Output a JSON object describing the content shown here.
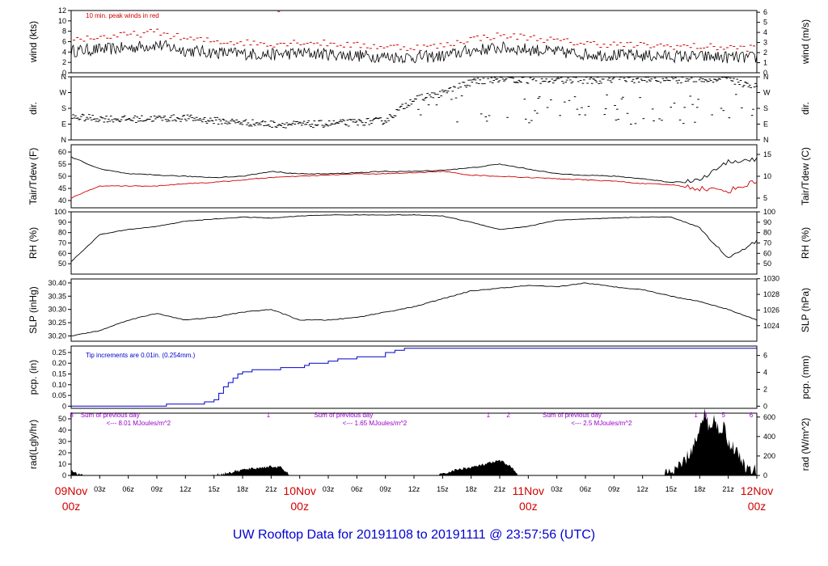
{
  "title": "UW Rooftop Data for 20191108  to  20191111 @ 23:57:56  (UTC)",
  "colors": {
    "black": "#000000",
    "red": "#d00000",
    "blue": "#0000d0",
    "purple": "#9900cc"
  },
  "x_axis": {
    "hour_labels": [
      "03z",
      "06z",
      "09z",
      "12z",
      "15z",
      "18z",
      "21z"
    ],
    "day_labels": [
      {
        "day": "09Nov",
        "hour": "00z"
      },
      {
        "day": "10Nov",
        "hour": "00z"
      },
      {
        "day": "11Nov",
        "hour": "00z"
      },
      {
        "day": "12Nov",
        "hour": "00z"
      }
    ]
  },
  "chart_data": [
    {
      "type": "line",
      "id": "wind",
      "ylabel": "wind (kts)",
      "ylabel_right": "wind (m/s)",
      "ylim": [
        0,
        12
      ],
      "yticks": [
        "0",
        "2",
        "4",
        "6",
        "8",
        "10",
        "12"
      ],
      "yticks_right": [
        "0",
        "1",
        "2",
        "3",
        "4",
        "5",
        "6"
      ],
      "annotation": "10 min. peak winds in red",
      "x_hours": [
        0,
        3,
        6,
        9,
        12,
        15,
        18,
        21,
        24,
        27,
        30,
        33,
        36,
        39,
        42,
        45,
        48,
        51,
        54,
        57,
        60,
        63,
        66,
        69,
        72
      ],
      "series": [
        {
          "role": "mean",
          "values": [
            4.2,
            4.5,
            4.8,
            5.4,
            4.3,
            3.9,
            3.7,
            3.5,
            3.8,
            3.6,
            3.3,
            3.1,
            3.0,
            3.2,
            4.3,
            4.8,
            4.5,
            4.0,
            3.6,
            3.4,
            3.3,
            3.2,
            3.1,
            3.0,
            2.9
          ]
        },
        {
          "role": "peak",
          "values": [
            6.2,
            6.6,
            7.0,
            7.6,
            6.3,
            5.8,
            5.6,
            5.3,
            5.7,
            5.4,
            5.0,
            4.8,
            4.6,
            4.9,
            6.3,
            6.9,
            6.6,
            5.9,
            5.4,
            5.2,
            5.0,
            4.9,
            4.8,
            4.6,
            4.5
          ]
        }
      ]
    },
    {
      "type": "scatter",
      "id": "dir",
      "ylabel": "dir.",
      "ylabel_right": "dir.",
      "ylim": [
        0,
        360
      ],
      "yticks": [
        "N",
        "E",
        "S",
        "W",
        "N"
      ],
      "x_hours": [
        0,
        3,
        6,
        9,
        12,
        15,
        18,
        21,
        24,
        27,
        30,
        33,
        36,
        39,
        42,
        45,
        48,
        51,
        54,
        57,
        60,
        63,
        66,
        69,
        72
      ],
      "values": [
        130,
        122,
        118,
        122,
        125,
        110,
        100,
        90,
        88,
        92,
        100,
        110,
        235,
        265,
        330,
        350,
        340,
        340,
        342,
        340,
        345,
        340,
        345,
        345,
        300
      ]
    },
    {
      "type": "line",
      "id": "temp",
      "ylabel": "Tair/Tdew (F)",
      "ylabel_right": "Tair/Tdew (C)",
      "ylim": [
        37,
        63
      ],
      "yticks": [
        "40",
        "45",
        "50",
        "55",
        "60"
      ],
      "yticks_right": [
        "5",
        "10",
        "15"
      ],
      "x_hours": [
        0,
        3,
        6,
        9,
        12,
        15,
        18,
        21,
        24,
        27,
        30,
        33,
        36,
        39,
        42,
        45,
        48,
        51,
        54,
        57,
        60,
        63,
        66,
        69,
        72
      ],
      "series": [
        {
          "name": "Tair",
          "values": [
            58,
            53,
            51,
            50.5,
            50,
            49.5,
            50,
            52,
            51,
            51,
            51.5,
            52,
            52,
            52.5,
            53.5,
            55,
            53,
            51,
            50.5,
            50,
            49,
            47.5,
            48.5,
            56,
            57
          ]
        },
        {
          "name": "Tdew",
          "values": [
            41,
            46,
            46,
            46,
            47,
            47.5,
            48.5,
            49.5,
            50,
            50.5,
            51,
            51,
            51.5,
            52,
            50.5,
            50,
            49.5,
            49,
            48.5,
            48,
            47,
            46.5,
            45,
            44,
            48
          ]
        }
      ]
    },
    {
      "type": "line",
      "id": "rh",
      "ylabel": "RH (%)",
      "ylabel_right": "RH (%)",
      "ylim": [
        40,
        100
      ],
      "yticks": [
        "50",
        "60",
        "70",
        "80",
        "90",
        "100"
      ],
      "yticks_right": [
        "50",
        "60",
        "70",
        "80",
        "90",
        "100"
      ],
      "x_hours": [
        0,
        3,
        6,
        9,
        12,
        15,
        18,
        21,
        24,
        27,
        30,
        33,
        36,
        39,
        42,
        45,
        48,
        51,
        54,
        57,
        60,
        63,
        66,
        69,
        72
      ],
      "values": [
        52,
        78,
        83,
        86,
        91,
        93,
        95,
        94,
        96,
        97,
        97,
        97,
        97,
        96,
        90,
        83,
        86,
        92,
        93,
        94,
        95,
        95,
        85,
        55,
        72
      ]
    },
    {
      "type": "line",
      "id": "slp",
      "ylabel": "SLP (inHg)",
      "ylabel_right": "SLP (hPa)",
      "ylim": [
        30.18,
        30.415
      ],
      "yticks": [
        "30.20",
        "30.25",
        "30.30",
        "30.35",
        "30.40"
      ],
      "yticks_right": [
        "1024",
        "1026",
        "1028",
        "1030"
      ],
      "x_hours": [
        0,
        3,
        6,
        9,
        12,
        15,
        18,
        21,
        24,
        27,
        30,
        33,
        36,
        39,
        42,
        45,
        48,
        51,
        54,
        57,
        60,
        63,
        66,
        69,
        72
      ],
      "values": [
        30.2,
        30.22,
        30.26,
        30.285,
        30.26,
        30.27,
        30.29,
        30.3,
        30.26,
        30.26,
        30.27,
        30.29,
        30.31,
        30.34,
        30.37,
        30.38,
        30.39,
        30.385,
        30.4,
        30.385,
        30.375,
        30.35,
        30.33,
        30.3,
        30.26
      ]
    },
    {
      "type": "line",
      "id": "pcp",
      "ylabel": "pcp. (in)",
      "ylabel_right": "pcp. (mm)",
      "ylim": [
        -0.01,
        0.28
      ],
      "yticks": [
        "0",
        "0.05",
        "0.10",
        "0.15",
        "0.20",
        "0.25"
      ],
      "yticks_right": [
        "0",
        "2",
        "4",
        "6"
      ],
      "annotation": "Tip increments are 0.01in. (0.254mm.)",
      "x_hours": [
        0,
        5,
        9,
        10,
        12,
        14,
        15,
        15.5,
        16,
        16.5,
        17,
        17.5,
        18,
        19,
        20,
        22,
        24,
        24.5,
        25,
        26,
        27,
        28,
        30,
        33,
        34,
        34.5,
        35,
        72
      ],
      "values": [
        0,
        0,
        0,
        0.01,
        0.01,
        0.02,
        0.03,
        0.06,
        0.09,
        0.11,
        0.13,
        0.15,
        0.16,
        0.17,
        0.17,
        0.18,
        0.18,
        0.19,
        0.2,
        0.2,
        0.21,
        0.22,
        0.23,
        0.25,
        0.26,
        0.26,
        0.27,
        0.27
      ]
    },
    {
      "type": "area",
      "id": "rad",
      "ylabel": "rad(Lgly/hr)",
      "ylabel_right": "rad (W/m^2)",
      "ylim": [
        0,
        55
      ],
      "yticks": [
        "0",
        "10",
        "20",
        "30",
        "40",
        "50"
      ],
      "yticks_right": [
        "0",
        "200",
        "400",
        "600"
      ],
      "annotations": [
        {
          "hour": 1.0,
          "text": "Sum of previous day"
        },
        {
          "hour": 3.7,
          "text": "<--- 8.01 MJoules/m^2"
        },
        {
          "hour": 25.5,
          "text": "Sum of previous day"
        },
        {
          "hour": 28.5,
          "text": "<--- 1.65 MJoules/m^2"
        },
        {
          "hour": 49.5,
          "text": "Sum of previous day"
        },
        {
          "hour": 52.5,
          "text": "<--- 2.5 MJoules/m^2"
        }
      ],
      "top_marks": [
        {
          "hour": 0.05,
          "text": "8"
        },
        {
          "hour": 20.7,
          "text": "1"
        },
        {
          "hour": 43.8,
          "text": "1"
        },
        {
          "hour": 45.9,
          "text": "2"
        },
        {
          "hour": 65.6,
          "text": "1"
        },
        {
          "hour": 66.6,
          "text": "3"
        },
        {
          "hour": 68.5,
          "text": "5"
        },
        {
          "hour": 71.4,
          "text": "6"
        }
      ],
      "x_hours": [
        0,
        0.8,
        1.5,
        14,
        15,
        16,
        17,
        18,
        19,
        20,
        21,
        22,
        23,
        38,
        39,
        40,
        41,
        42,
        43,
        44,
        45,
        46,
        47,
        48,
        62,
        63,
        64,
        65,
        66,
        66.5,
        67,
        67.5,
        68,
        68.5,
        69,
        70,
        71,
        72
      ],
      "values": [
        4,
        1,
        0,
        0,
        0.5,
        1.5,
        3,
        5,
        6,
        7,
        8,
        7,
        0,
        0,
        1,
        4,
        6,
        7,
        9,
        11,
        13,
        9,
        0,
        0,
        0,
        2,
        8,
        20,
        38,
        55,
        42,
        50,
        40,
        44,
        30,
        20,
        5,
        4
      ]
    }
  ]
}
